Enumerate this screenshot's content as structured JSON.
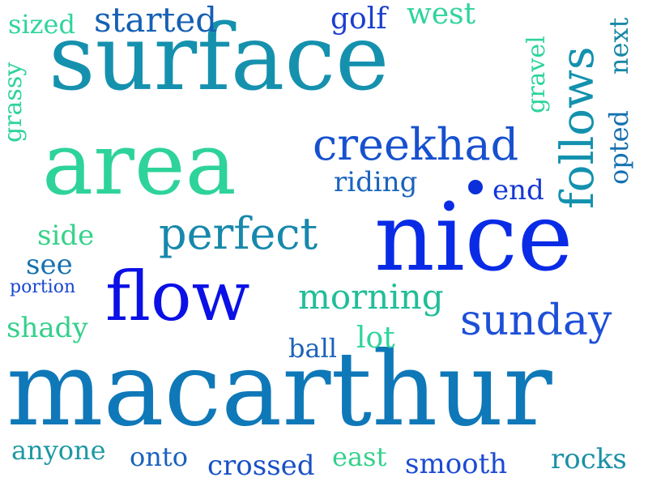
{
  "words": {
    "surface": "surface",
    "area": "area",
    "nice": "nice",
    "macarthur": "macarthur",
    "flow": "flow",
    "perfect": "perfect",
    "creekhad": "creekhad",
    "sunday": "sunday",
    "follows": "follows",
    "started": "started",
    "sized": "sized",
    "golf": "golf",
    "west": "west",
    "gravel": "gravel",
    "next": "next",
    "grassy": "grassy",
    "opted": "opted",
    "riding": "riding",
    "end": "end",
    "side": "side",
    "see": "see",
    "portion": "portion",
    "morning": "morning",
    "shady": "shady",
    "ball": "ball",
    "lot": "lot",
    "anyone": "anyone",
    "onto": "onto",
    "crossed": "crossed",
    "east": "east",
    "smooth": "smooth",
    "rocks": "rocks"
  },
  "colors": {
    "teal": "#0a8aa8",
    "mint": "#2ed39a",
    "green": "#36d28a",
    "blue": "#1e4fe0",
    "royal": "#0a10e6",
    "steel": "#1a6fbe",
    "dot": "#0b2fd8"
  }
}
